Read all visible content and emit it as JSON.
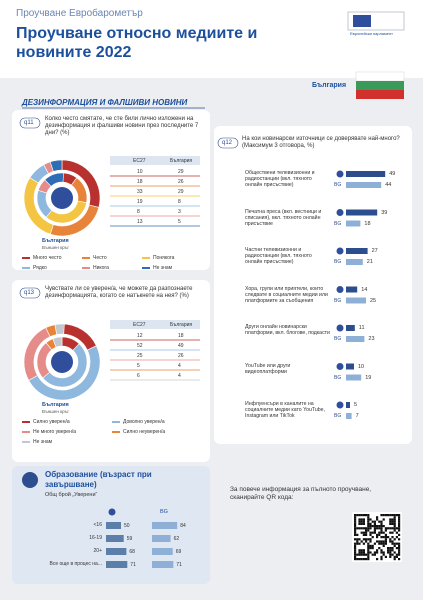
{
  "header": {
    "kicker": "Проучване Евробарометър",
    "title": "Проучване относно медиите и новините 2022",
    "logo": "Европейски парламент"
  },
  "section": {
    "title": "ДЕЗИНФОРМАЦИЯ И ФАЛШИВИ НОВИНИ",
    "country": "България"
  },
  "q11": {
    "id": "q11",
    "question": "Колко често смятате, че сте били лично изложени на дезинформация и фалшиви новини през последните 7 дни? (%)",
    "columns": [
      "ЕС27",
      "България"
    ],
    "donut_label": "България",
    "donut_sublabel": "Външен кръг",
    "categories": [
      "Много често",
      "Често",
      "Понякога",
      "Рядко",
      "Никога",
      "Не знам"
    ],
    "colors": [
      "#b8312f",
      "#e8833a",
      "#f4c542",
      "#8fb8de",
      "#e58c8a",
      "#2f6db5"
    ],
    "eu27": [
      10,
      18,
      33,
      19,
      8,
      13
    ],
    "bulgaria": [
      29,
      26,
      29,
      8,
      3,
      5
    ]
  },
  "q12": {
    "id": "q12",
    "question": "На кои новинарски източници се доверявате най-много? (Максимум 3 отговора, %)",
    "series_label": "BG",
    "items": [
      {
        "label": "Обществени телевизионни и радиостанции (вкл. тяхното онлайн присъствие)",
        "eu": 49,
        "bg": 44
      },
      {
        "label": "Печатна преса (вкл. вестници и списания), вкл. тяхното онлайн присъствие",
        "eu": 39,
        "bg": 18
      },
      {
        "label": "Частни телевизионни и радиостанции (вкл. тяхното онлайн присъствие)",
        "eu": 27,
        "bg": 21
      },
      {
        "label": "Хора, групи или приятели, които следвате в социалните медии или платформите за съобщения",
        "eu": 14,
        "bg": 25
      },
      {
        "label": "Други онлайн новинарски платформи, вкл. блогове, подкасти",
        "eu": 11,
        "bg": 23
      },
      {
        "label": "YouTube или други видеоплатформи",
        "eu": 10,
        "bg": 19
      },
      {
        "label": "Инфлуенсъри в каналите на социалните медии като YouTube, Instagram или TikTok",
        "eu": 5,
        "bg": 7
      }
    ]
  },
  "q13": {
    "id": "q13",
    "question": "Чувствате ли се уверен/а, че можете да разпознаете дезинформацията, когато се натъкнете на нея? (%)",
    "columns": [
      "ЕС27",
      "България"
    ],
    "donut_label": "България",
    "donut_sublabel": "Външен кръг",
    "categories": [
      "Силно уверен/а",
      "Доволно уверен/а",
      "Не много уверен/а",
      "Силно неуверен/а",
      "Не знам"
    ],
    "colors": [
      "#b8312f",
      "#8fb8de",
      "#e58c8a",
      "#e8833a",
      "#c3c8cf"
    ],
    "eu27": [
      12,
      52,
      25,
      5,
      6
    ],
    "bulgaria": [
      18,
      49,
      26,
      4,
      4
    ]
  },
  "education": {
    "title": "Образование (възраст при завършване)",
    "subtitle": "Общ брой „Уверени“",
    "column": "BG",
    "rows": [
      {
        "label": "<16",
        "eu": 50,
        "bg": 84
      },
      {
        "label": "16-19",
        "eu": 59,
        "bg": 62
      },
      {
        "label": "20+",
        "eu": 68,
        "bg": 69
      },
      {
        "label": "Все още в процес на...",
        "eu": 71,
        "bg": 71
      }
    ]
  },
  "qr": {
    "text": "За повече информация за пълното проучване, сканирайте QR кода:"
  }
}
